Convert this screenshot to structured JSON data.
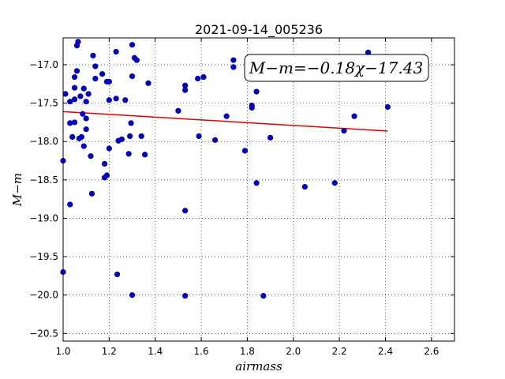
{
  "chart_data": {
    "type": "scatter",
    "title": "2021-09-14_005236",
    "xlabel": "airmass",
    "ylabel": "M−m",
    "xlim": [
      1.0,
      2.7
    ],
    "ylim": [
      -20.6,
      -16.65
    ],
    "x_ticks": [
      "1.0",
      "1.2",
      "1.4",
      "1.6",
      "1.8",
      "2.0",
      "2.2",
      "2.4",
      "2.6"
    ],
    "x_tick_values": [
      1.0,
      1.2,
      1.4,
      1.6,
      1.8,
      2.0,
      2.2,
      2.4,
      2.6
    ],
    "y_ticks": [
      "−17.0",
      "−17.5",
      "−18.0",
      "−18.5",
      "−19.0",
      "−19.5",
      "−20.0",
      "−20.5"
    ],
    "y_tick_values": [
      -17.0,
      -17.5,
      -18.0,
      -18.5,
      -19.0,
      -19.5,
      -20.0,
      -20.5
    ],
    "grid": true,
    "annotation": "M−m=−0.18χ−17.43",
    "annotation_placement": "top-right",
    "point_color": "#0000cc",
    "fit_color": "#dd0000",
    "fit": {
      "slope": -0.18,
      "intercept": -17.43,
      "x_range": [
        1.0,
        2.41
      ]
    },
    "points": [
      [
        1.0,
        -18.25
      ],
      [
        1.0,
        -19.7
      ],
      [
        1.01,
        -17.38
      ],
      [
        1.03,
        -17.48
      ],
      [
        1.03,
        -17.76
      ],
      [
        1.03,
        -18.82
      ],
      [
        1.04,
        -17.94
      ],
      [
        1.05,
        -17.3
      ],
      [
        1.05,
        -17.16
      ],
      [
        1.05,
        -17.45
      ],
      [
        1.05,
        -17.75
      ],
      [
        1.06,
        -17.08
      ],
      [
        1.06,
        -16.75
      ],
      [
        1.065,
        -16.7
      ],
      [
        1.07,
        -17.96
      ],
      [
        1.075,
        -17.41
      ],
      [
        1.08,
        -17.94
      ],
      [
        1.085,
        -17.64
      ],
      [
        1.09,
        -17.31
      ],
      [
        1.09,
        -18.06
      ],
      [
        1.1,
        -17.7
      ],
      [
        1.1,
        -17.84
      ],
      [
        1.1,
        -17.48
      ],
      [
        1.11,
        -17.38
      ],
      [
        1.12,
        -18.19
      ],
      [
        1.125,
        -18.68
      ],
      [
        1.13,
        -16.88
      ],
      [
        1.14,
        -17.02
      ],
      [
        1.14,
        -17.18
      ],
      [
        1.17,
        -17.12
      ],
      [
        1.18,
        -18.29
      ],
      [
        1.18,
        -18.47
      ],
      [
        1.19,
        -18.44
      ],
      [
        1.19,
        -17.22
      ],
      [
        1.2,
        -17.46
      ],
      [
        1.2,
        -18.09
      ],
      [
        1.2,
        -17.22
      ],
      [
        1.23,
        -16.83
      ],
      [
        1.23,
        -17.44
      ],
      [
        1.235,
        -19.73
      ],
      [
        1.24,
        -17.99
      ],
      [
        1.255,
        -17.97
      ],
      [
        1.27,
        -17.46
      ],
      [
        1.285,
        -18.16
      ],
      [
        1.29,
        -17.93
      ],
      [
        1.295,
        -17.76
      ],
      [
        1.3,
        -16.74
      ],
      [
        1.3,
        -17.15
      ],
      [
        1.3,
        -20.0
      ],
      [
        1.31,
        -16.91
      ],
      [
        1.32,
        -16.94
      ],
      [
        1.34,
        -17.93
      ],
      [
        1.355,
        -18.17
      ],
      [
        1.37,
        -17.24
      ],
      [
        1.5,
        -17.6
      ],
      [
        1.53,
        -17.27
      ],
      [
        1.53,
        -17.33
      ],
      [
        1.53,
        -18.9
      ],
      [
        1.53,
        -20.01
      ],
      [
        1.585,
        -17.18
      ],
      [
        1.59,
        -17.93
      ],
      [
        1.61,
        -17.16
      ],
      [
        1.66,
        -17.98
      ],
      [
        1.71,
        -17.67
      ],
      [
        1.74,
        -16.94
      ],
      [
        1.74,
        -17.03
      ],
      [
        1.79,
        -18.12
      ],
      [
        1.82,
        -17.53
      ],
      [
        1.82,
        -17.56
      ],
      [
        1.84,
        -17.35
      ],
      [
        1.84,
        -18.54
      ],
      [
        1.87,
        -20.01
      ],
      [
        1.9,
        -17.95
      ],
      [
        2.05,
        -18.59
      ],
      [
        2.18,
        -18.54
      ],
      [
        2.22,
        -17.86
      ],
      [
        2.265,
        -17.67
      ],
      [
        2.325,
        -16.84
      ],
      [
        2.41,
        -17.55
      ]
    ]
  }
}
